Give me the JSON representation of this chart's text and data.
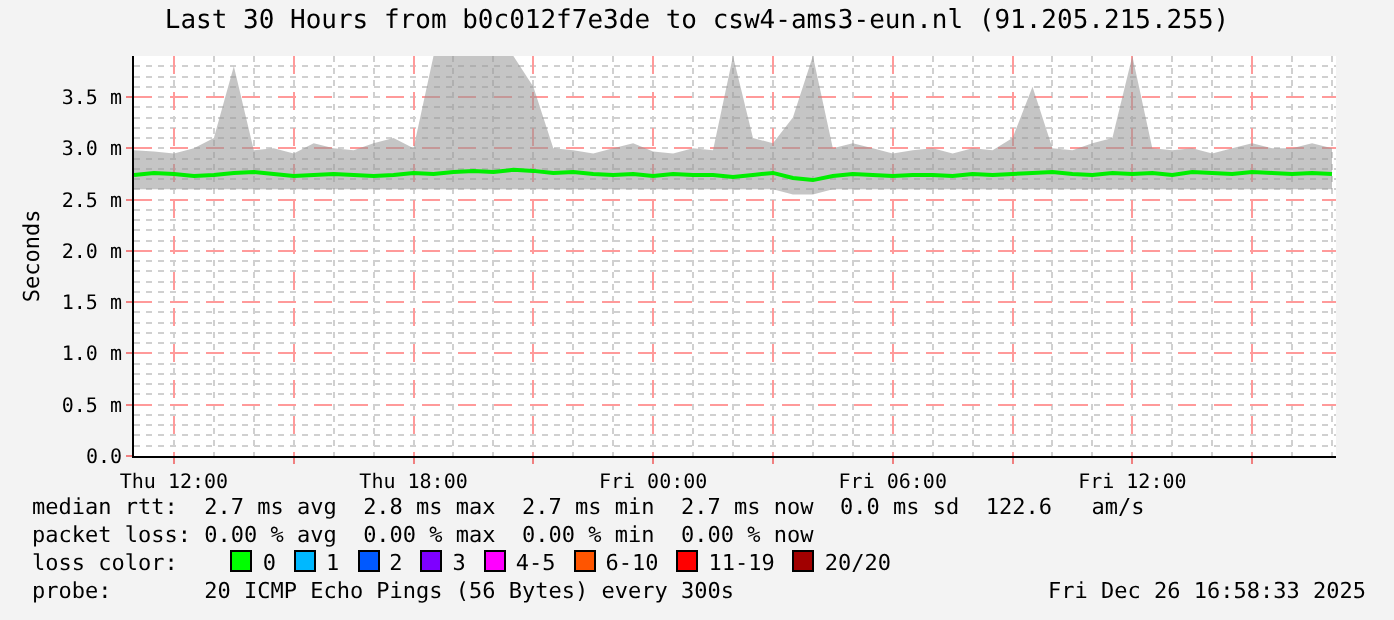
{
  "chart_data": {
    "type": "line",
    "title": "Last 30 Hours from b0c012f7e3de to csw4-ams3-eun.nl (91.205.215.255)",
    "ylabel": "Seconds",
    "x": [
      "2025-12-25T11:00",
      "2025-12-25T11:30",
      "2025-12-25T12:00",
      "2025-12-25T12:30",
      "2025-12-25T13:00",
      "2025-12-25T13:30",
      "2025-12-25T14:00",
      "2025-12-25T14:30",
      "2025-12-25T15:00",
      "2025-12-25T15:30",
      "2025-12-25T16:00",
      "2025-12-25T16:30",
      "2025-12-25T17:00",
      "2025-12-25T17:30",
      "2025-12-25T18:00",
      "2025-12-25T18:30",
      "2025-12-25T19:00",
      "2025-12-25T19:30",
      "2025-12-25T20:00",
      "2025-12-25T20:30",
      "2025-12-25T21:00",
      "2025-12-25T21:30",
      "2025-12-25T22:00",
      "2025-12-25T22:30",
      "2025-12-25T23:00",
      "2025-12-25T23:30",
      "2025-12-26T00:00",
      "2025-12-26T00:30",
      "2025-12-26T01:00",
      "2025-12-26T01:30",
      "2025-12-26T02:00",
      "2025-12-26T02:30",
      "2025-12-26T03:00",
      "2025-12-26T03:30",
      "2025-12-26T04:00",
      "2025-12-26T04:30",
      "2025-12-26T05:00",
      "2025-12-26T05:30",
      "2025-12-26T06:00",
      "2025-12-26T06:30",
      "2025-12-26T07:00",
      "2025-12-26T07:30",
      "2025-12-26T08:00",
      "2025-12-26T08:30",
      "2025-12-26T09:00",
      "2025-12-26T09:30",
      "2025-12-26T10:00",
      "2025-12-26T10:30",
      "2025-12-26T11:00",
      "2025-12-26T11:30",
      "2025-12-26T12:00",
      "2025-12-26T12:30",
      "2025-12-26T13:00",
      "2025-12-26T13:30",
      "2025-12-26T14:00",
      "2025-12-26T14:30",
      "2025-12-26T15:00",
      "2025-12-26T15:30",
      "2025-12-26T16:00",
      "2025-12-26T16:30",
      "2025-12-26T17:00"
    ],
    "series": [
      {
        "color": "#00ee00",
        "values": [
          2.74,
          2.76,
          2.75,
          2.73,
          2.74,
          2.76,
          2.77,
          2.75,
          2.73,
          2.74,
          2.75,
          2.74,
          2.73,
          2.74,
          2.76,
          2.75,
          2.77,
          2.78,
          2.77,
          2.79,
          2.78,
          2.76,
          2.77,
          2.75,
          2.74,
          2.75,
          2.73,
          2.75,
          2.74,
          2.74,
          2.72,
          2.74,
          2.76,
          2.71,
          2.69,
          2.73,
          2.75,
          2.74,
          2.73,
          2.74,
          2.74,
          2.73,
          2.75,
          2.74,
          2.75,
          2.76,
          2.77,
          2.75,
          2.74,
          2.76,
          2.75,
          2.76,
          2.74,
          2.77,
          2.76,
          2.75,
          2.77,
          2.76,
          2.75,
          2.76,
          2.75
        ],
        "lower": [
          2.6,
          2.6,
          2.6,
          2.6,
          2.6,
          2.6,
          2.6,
          2.6,
          2.6,
          2.6,
          2.6,
          2.6,
          2.6,
          2.6,
          2.6,
          2.6,
          2.6,
          2.6,
          2.6,
          2.6,
          2.6,
          2.6,
          2.6,
          2.6,
          2.6,
          2.6,
          2.6,
          2.6,
          2.6,
          2.6,
          2.6,
          2.6,
          2.6,
          2.55,
          2.55,
          2.6,
          2.6,
          2.6,
          2.6,
          2.6,
          2.6,
          2.6,
          2.6,
          2.6,
          2.6,
          2.6,
          2.6,
          2.6,
          2.6,
          2.6,
          2.6,
          2.6,
          2.6,
          2.6,
          2.6,
          2.6,
          2.6,
          2.6,
          2.6,
          2.6,
          2.6
        ],
        "upper": [
          2.98,
          2.97,
          2.95,
          3.0,
          3.1,
          3.8,
          2.98,
          3.0,
          2.95,
          3.05,
          3.0,
          2.98,
          3.05,
          3.1,
          3.0,
          3.9,
          3.9,
          3.9,
          3.9,
          3.9,
          3.6,
          3.0,
          2.98,
          2.95,
          3.0,
          3.05,
          2.97,
          2.95,
          3.0,
          2.98,
          3.9,
          3.1,
          3.05,
          3.3,
          3.9,
          3.0,
          3.05,
          3.0,
          2.95,
          2.98,
          3.0,
          2.95,
          3.0,
          2.98,
          3.1,
          3.6,
          3.0,
          2.98,
          3.05,
          3.1,
          3.9,
          3.0,
          2.98,
          3.0,
          2.95,
          3.0,
          3.05,
          3.0,
          3.0,
          3.05,
          3.0
        ]
      }
    ],
    "xlim": [
      "2025-12-25T11:00",
      "2025-12-26T17:06"
    ],
    "xticks": [
      {
        "value": "2025-12-25T12:00",
        "label": "Thu 12:00"
      },
      {
        "value": "2025-12-25T15:00",
        "label": null
      },
      {
        "value": "2025-12-25T18:00",
        "label": "Thu 18:00"
      },
      {
        "value": "2025-12-25T21:00",
        "label": null
      },
      {
        "value": "2025-12-26T00:00",
        "label": "Fri 00:00"
      },
      {
        "value": "2025-12-26T03:00",
        "label": null
      },
      {
        "value": "2025-12-26T06:00",
        "label": "Fri 06:00"
      },
      {
        "value": "2025-12-26T09:00",
        "label": null
      },
      {
        "value": "2025-12-26T12:00",
        "label": "Fri 12:00"
      },
      {
        "value": "2025-12-26T15:00",
        "label": null
      }
    ],
    "ylim": [
      0,
      3.9
    ],
    "yticks": [
      {
        "value": 0,
        "label": "0.0"
      },
      {
        "value": 0.5,
        "label": "0.5 m"
      },
      {
        "value": 1,
        "label": "1.0 m"
      },
      {
        "value": 1.5,
        "label": "1.5 m"
      },
      {
        "value": 2,
        "label": "2.0 m"
      },
      {
        "value": 2.5,
        "label": "2.5 m"
      },
      {
        "value": 3,
        "label": "3.0 m"
      },
      {
        "value": 3.5,
        "label": "3.5 m"
      }
    ],
    "grid": true,
    "line_style": "solid",
    "legend_title": "loss color:",
    "annotations": [
      "median rtt:  2.7 ms avg  2.8 ms max  2.7 ms min  2.7 ms now  0.0 ms sd  122.6   am/s",
      "packet loss: 0.00 % avg  0.00 % max  0.00 % min  0.00 % now",
      "0",
      "1",
      "2",
      "3",
      "4-5",
      "6-10",
      "11-19",
      "20/20",
      "probe:       20 ICMP Echo Pings (56 Bytes) every 300s",
      "Fri Dec 26 16:58:33 2025"
    ]
  }
}
